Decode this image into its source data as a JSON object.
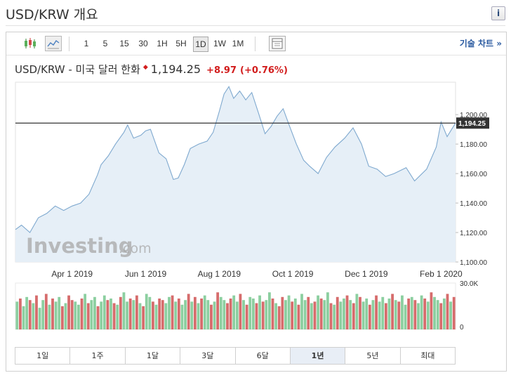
{
  "page": {
    "title": "USD/KRW 개요",
    "info_label": "i"
  },
  "toolbar": {
    "timeframes": [
      "1",
      "5",
      "15",
      "30",
      "1H",
      "5H",
      "1D",
      "1W",
      "1M"
    ],
    "selected_timeframe": "1D",
    "icons": [
      "candlestick-icon",
      "line-chart-icon",
      "settings-panel-icon"
    ],
    "advanced_link": "기술 차트 »"
  },
  "quote": {
    "instrument": "USD/KRW - 미국 달러 한화",
    "price": "1,194.25",
    "change": "+8.97",
    "change_pct": "(+0.76%)",
    "direction": "up"
  },
  "watermark": {
    "brand": "Investing",
    "suffix": ".com"
  },
  "colors": {
    "line": "#7fa9cf",
    "area": "#e6eff7",
    "price_line": "#333333",
    "price_badge": "#333333",
    "vol_up": "#8ccfa0",
    "vol_down": "#d66c6c",
    "change": "#d21d1d"
  },
  "chart_data": [
    {
      "type": "area",
      "x_tick_labels": [
        "Apr 1 2019",
        "Jun 1 2019",
        "Aug 1 2019",
        "Oct 1 2019",
        "Dec 1 2019",
        "Feb 1 2020"
      ],
      "x_tick_dates": [
        "2019-04-01",
        "2019-06-01",
        "2019-08-01",
        "2019-10-01",
        "2019-12-01",
        "2020-02-01"
      ],
      "y_tick_labels": [
        "1,200.00",
        "1,180.00",
        "1,160.00",
        "1,140.00",
        "1,120.00",
        "1,100.00"
      ],
      "y_ticks": [
        1200,
        1180,
        1160,
        1140,
        1120,
        1100
      ],
      "ylim": [
        1100,
        1222
      ],
      "xlim": [
        "2019-02-13",
        "2020-02-13"
      ],
      "current_price_label": "1,194.25",
      "current_price": 1194.25,
      "grid": false,
      "x": [
        "2019-02-13",
        "2019-02-18",
        "2019-02-25",
        "2019-03-04",
        "2019-03-11",
        "2019-03-18",
        "2019-03-25",
        "2019-04-01",
        "2019-04-08",
        "2019-04-15",
        "2019-04-22",
        "2019-04-25",
        "2019-05-01",
        "2019-05-07",
        "2019-05-14",
        "2019-05-17",
        "2019-05-22",
        "2019-05-28",
        "2019-06-01",
        "2019-06-05",
        "2019-06-12",
        "2019-06-18",
        "2019-06-24",
        "2019-06-28",
        "2019-07-03",
        "2019-07-08",
        "2019-07-15",
        "2019-07-22",
        "2019-07-27",
        "2019-08-01",
        "2019-08-05",
        "2019-08-09",
        "2019-08-13",
        "2019-08-18",
        "2019-08-23",
        "2019-08-28",
        "2019-09-03",
        "2019-09-08",
        "2019-09-13",
        "2019-09-18",
        "2019-09-23",
        "2019-09-28",
        "2019-10-04",
        "2019-10-10",
        "2019-10-15",
        "2019-10-22",
        "2019-10-29",
        "2019-11-05",
        "2019-11-13",
        "2019-11-20",
        "2019-11-27",
        "2019-12-03",
        "2019-12-10",
        "2019-12-17",
        "2019-12-24",
        "2020-01-03",
        "2020-01-10",
        "2020-01-20",
        "2020-01-28",
        "2020-02-01",
        "2020-02-06",
        "2020-02-13"
      ],
      "y": [
        1122,
        1125,
        1120,
        1130,
        1133,
        1138,
        1135,
        1138,
        1140,
        1146,
        1159,
        1166,
        1172,
        1180,
        1188,
        1193,
        1184,
        1186,
        1189,
        1190,
        1174,
        1170,
        1156,
        1157,
        1166,
        1177,
        1180,
        1182,
        1188,
        1202,
        1214,
        1219,
        1211,
        1216,
        1210,
        1215,
        1200,
        1187,
        1192,
        1199,
        1204,
        1193,
        1180,
        1169,
        1165,
        1160,
        1171,
        1178,
        1184,
        1191,
        1180,
        1165,
        1163,
        1158,
        1160,
        1164,
        1155,
        1163,
        1178,
        1195,
        1185,
        1194.25
      ]
    },
    {
      "type": "bar",
      "title": "Volume",
      "y_tick_labels": [
        "30.0K",
        "0"
      ],
      "y_ticks": [
        30000,
        0
      ],
      "ylim": [
        0,
        30000
      ],
      "x_start": "2019-02-13",
      "x_end": "2020-02-13",
      "values": [
        18,
        20,
        15,
        21,
        19,
        17,
        22,
        14,
        19,
        23,
        16,
        20,
        18,
        21,
        15,
        17,
        22,
        19,
        18,
        16,
        20,
        23,
        17,
        19,
        21,
        15,
        18,
        22,
        19,
        20,
        17,
        16,
        21,
        24,
        18,
        20,
        19,
        22,
        17,
        15,
        23,
        21,
        18,
        16,
        20,
        19,
        17,
        21,
        22,
        18,
        20,
        16,
        19,
        23,
        18,
        21,
        17,
        20,
        22,
        19,
        16,
        18,
        24,
        21,
        19,
        17,
        20,
        22,
        18,
        23,
        19,
        16,
        21,
        20,
        17,
        22,
        18,
        19,
        24,
        20,
        17,
        15,
        21,
        19,
        22,
        18,
        20,
        16,
        23,
        19,
        21,
        17,
        18,
        22,
        20,
        19,
        24,
        17,
        16,
        21,
        18,
        20,
        22,
        19,
        17,
        23,
        21,
        18,
        20,
        16,
        19,
        22,
        18,
        21,
        17,
        20,
        23,
        19,
        18,
        22,
        16,
        20,
        21,
        19,
        17,
        22,
        20,
        18,
        24,
        21,
        19,
        17,
        20,
        23,
        18,
        21
      ],
      "up_down": [
        "u",
        "d",
        "u",
        "u",
        "d",
        "u",
        "d",
        "u",
        "u",
        "d",
        "u",
        "d",
        "u",
        "u",
        "d",
        "u",
        "d",
        "d",
        "u",
        "u",
        "d",
        "u",
        "d",
        "u",
        "u",
        "d",
        "u",
        "u",
        "d",
        "u",
        "d",
        "u",
        "d",
        "u",
        "u",
        "d",
        "u",
        "d",
        "u",
        "d",
        "u",
        "u",
        "d",
        "u",
        "d",
        "d",
        "u",
        "u",
        "d",
        "u",
        "d",
        "u",
        "u",
        "d",
        "u",
        "d",
        "u",
        "d",
        "u",
        "u",
        "d",
        "u",
        "d",
        "u",
        "u",
        "d",
        "d",
        "u",
        "u",
        "d",
        "u",
        "d",
        "u",
        "u",
        "d",
        "u",
        "d",
        "u",
        "u",
        "d",
        "u",
        "d",
        "d",
        "u",
        "u",
        "d",
        "u",
        "d",
        "u",
        "u",
        "d",
        "u",
        "d",
        "u",
        "d",
        "u",
        "u",
        "d",
        "u",
        "d",
        "u",
        "u",
        "d",
        "u",
        "d",
        "u",
        "d",
        "u",
        "u",
        "d",
        "u",
        "d",
        "u",
        "u",
        "d",
        "u",
        "d",
        "u",
        "d",
        "u",
        "u",
        "d",
        "u",
        "d",
        "u",
        "u",
        "d",
        "u",
        "d",
        "u",
        "u",
        "d",
        "u",
        "d",
        "u",
        "d"
      ]
    }
  ],
  "ranges": {
    "options": [
      "1일",
      "1주",
      "1달",
      "3달",
      "6달",
      "1년",
      "5년",
      "최대"
    ],
    "selected": "1년"
  }
}
